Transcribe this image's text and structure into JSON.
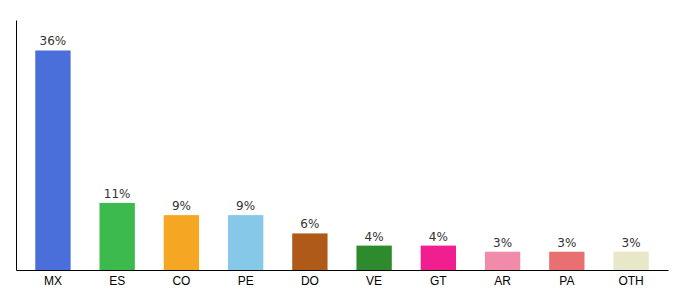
{
  "chart_data": {
    "type": "bar",
    "categories": [
      "MX",
      "ES",
      "CO",
      "PE",
      "DO",
      "VE",
      "GT",
      "AR",
      "PA",
      "OTH"
    ],
    "values": [
      36,
      11,
      9,
      9,
      6,
      4,
      4,
      3,
      3,
      3
    ],
    "value_labels": [
      "36%",
      "11%",
      "9%",
      "9%",
      "6%",
      "4%",
      "4%",
      "3%",
      "3%",
      "3%"
    ],
    "colors": [
      "#4a6fdb",
      "#3dba4e",
      "#f5a623",
      "#85c8e8",
      "#b05a1a",
      "#2d8a2d",
      "#f01e8f",
      "#f08caa",
      "#e87070",
      "#e8e8c8"
    ],
    "ylim": [
      0,
      41
    ],
    "data_labels": true,
    "tick_labels": "x",
    "grid": false
  }
}
